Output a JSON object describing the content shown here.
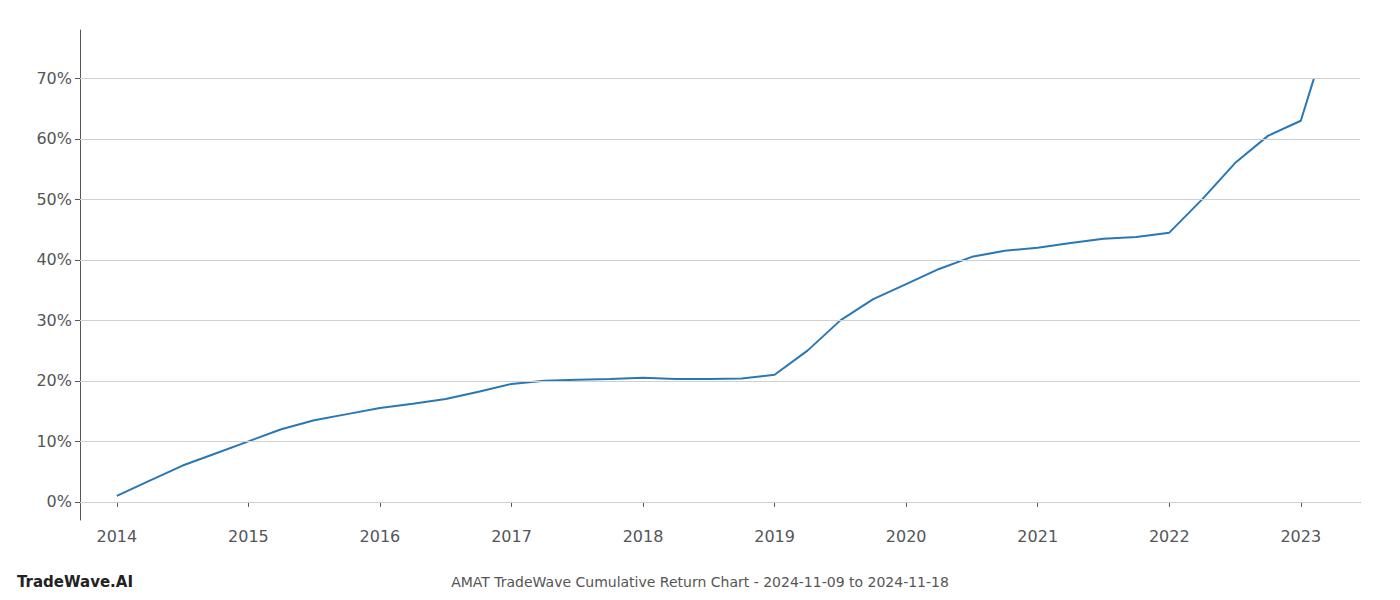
{
  "chart_data": {
    "type": "line",
    "title": "AMAT TradeWave Cumulative Return Chart - 2024-11-09 to 2024-11-18",
    "annotations": [
      "TradeWave.AI"
    ],
    "x": [
      2014.0,
      2014.25,
      2014.5,
      2014.75,
      2015.0,
      2015.25,
      2015.5,
      2015.75,
      2016.0,
      2016.25,
      2016.5,
      2016.75,
      2017.0,
      2017.25,
      2017.5,
      2017.75,
      2018.0,
      2018.25,
      2018.5,
      2018.75,
      2019.0,
      2019.25,
      2019.5,
      2019.75,
      2020.0,
      2020.25,
      2020.5,
      2020.75,
      2021.0,
      2021.25,
      2021.5,
      2021.75,
      2022.0,
      2022.25,
      2022.5,
      2022.75,
      2023.0,
      2023.1
    ],
    "values": [
      1.0,
      3.5,
      6.0,
      8.0,
      10.0,
      12.0,
      13.5,
      14.5,
      15.5,
      16.2,
      17.0,
      18.2,
      19.5,
      20.0,
      20.2,
      20.3,
      20.5,
      20.3,
      20.3,
      20.4,
      21.0,
      25.0,
      30.0,
      33.5,
      36.0,
      38.5,
      40.5,
      41.5,
      42.0,
      42.8,
      43.5,
      43.8,
      44.5,
      50.0,
      56.0,
      60.5,
      63.0,
      70.0
    ],
    "color": "#2878b5",
    "xlim": [
      2013.72,
      2023.45
    ],
    "xticks": [
      2014,
      2015,
      2016,
      2017,
      2018,
      2019,
      2020,
      2021,
      2022,
      2023
    ],
    "ylim": [
      -3,
      78
    ],
    "yticks": [
      {
        "value": 0,
        "label": "0%"
      },
      {
        "value": 10,
        "label": "10%"
      },
      {
        "value": 20,
        "label": "20%"
      },
      {
        "value": 30,
        "label": "30%"
      },
      {
        "value": 40,
        "label": "40%"
      },
      {
        "value": 50,
        "label": "50%"
      },
      {
        "value": 60,
        "label": "60%"
      },
      {
        "value": 70,
        "label": "70%"
      }
    ],
    "grid": true
  }
}
